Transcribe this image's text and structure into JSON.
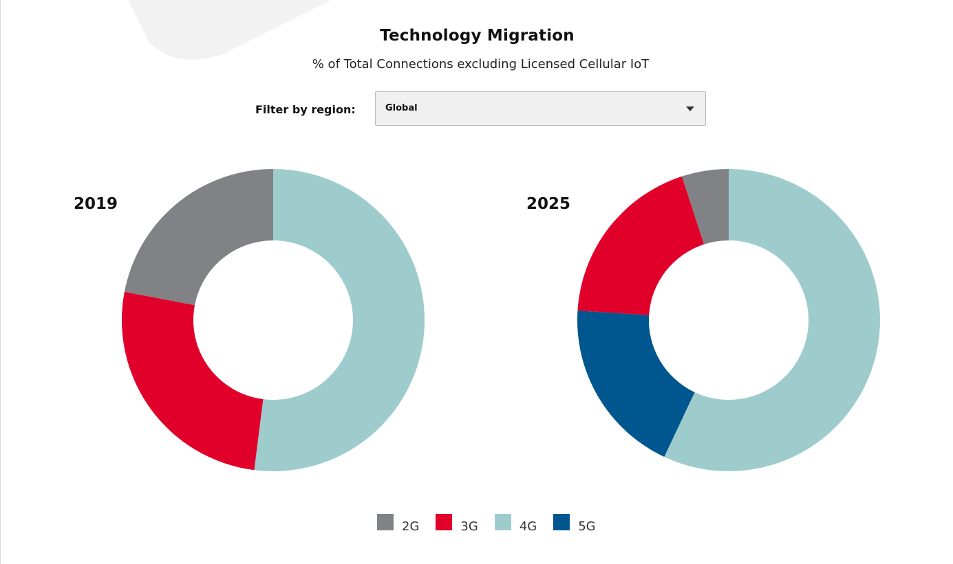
{
  "title": "Technology Migration",
  "subtitle": "% of Total Connections excluding Licensed Cellular IoT",
  "filter": {
    "label": "Filter by region:",
    "selected": "Global"
  },
  "colors": {
    "2G": "#818286",
    "3G": "#e0002a",
    "4G": "#9ecccd",
    "5G": "#00568f"
  },
  "chart_data": [
    {
      "type": "pie",
      "title": "2019",
      "categories": [
        "4G",
        "3G",
        "2G"
      ],
      "values": [
        52,
        26,
        22
      ]
    },
    {
      "type": "pie",
      "title": "2025",
      "categories": [
        "4G",
        "5G",
        "3G",
        "2G"
      ],
      "values": [
        57,
        19,
        19,
        5
      ]
    }
  ],
  "legend": [
    {
      "label": "2G"
    },
    {
      "label": "3G"
    },
    {
      "label": "4G"
    },
    {
      "label": "5G"
    }
  ]
}
